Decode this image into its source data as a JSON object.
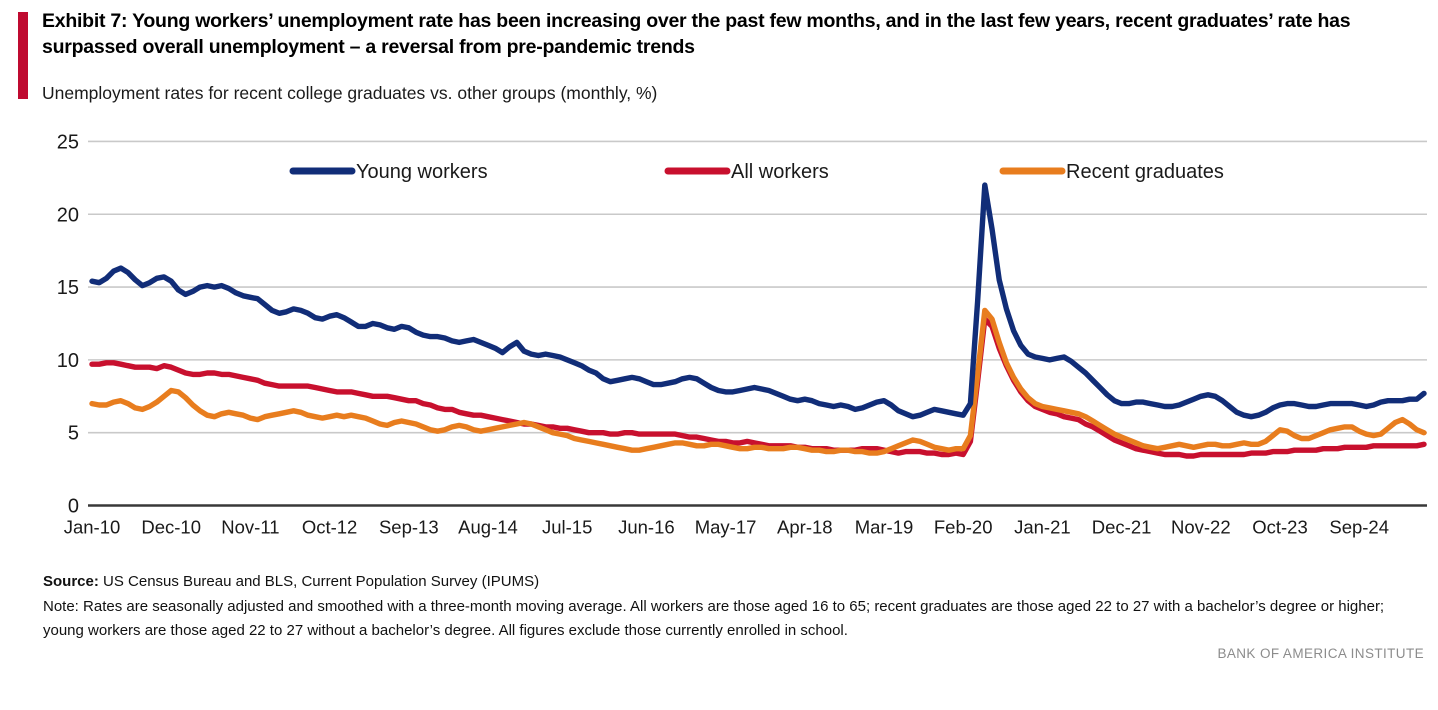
{
  "header": {
    "title": "Exhibit 7: Young workers’ unemployment rate has been increasing over the past few months, and in the last few years, recent graduates’ rate has surpassed overall unemployment – a reversal from pre-pandemic trends",
    "subtitle": "Unemployment rates for recent college graduates vs. other groups (monthly, %)",
    "accent_color": "#bf0a30"
  },
  "chart_data": {
    "type": "line",
    "title": "Unemployment rates for recent college graduates vs. other groups (monthly, %)",
    "x_unit": "month",
    "x_start": "Jan-10",
    "x_end": "Jun-25",
    "x_tick_labels": [
      "Jan-10",
      "Dec-10",
      "Nov-11",
      "Oct-12",
      "Sep-13",
      "Aug-14",
      "Jul-15",
      "Jun-16",
      "May-17",
      "Apr-18",
      "Mar-19",
      "Feb-20",
      "Jan-21",
      "Dec-21",
      "Nov-22",
      "Oct-23",
      "Sep-24"
    ],
    "x_tick_indices": [
      0,
      11,
      22,
      33,
      44,
      55,
      66,
      77,
      88,
      99,
      110,
      121,
      132,
      143,
      154,
      165,
      176
    ],
    "ylim": [
      0,
      25
    ],
    "y_ticks": [
      0,
      5,
      10,
      15,
      20,
      25
    ],
    "grid": "horizontal",
    "legend_position": "top-inside",
    "axis_color": "#383838",
    "grid_color": "#c9c9c9",
    "series": [
      {
        "name": "Young workers",
        "color": "#112d78",
        "values": [
          15.4,
          15.3,
          15.6,
          16.1,
          16.3,
          16.0,
          15.5,
          15.1,
          15.3,
          15.6,
          15.7,
          15.4,
          14.8,
          14.5,
          14.7,
          15.0,
          15.1,
          15.0,
          15.1,
          14.9,
          14.6,
          14.4,
          14.3,
          14.2,
          13.8,
          13.4,
          13.2,
          13.3,
          13.5,
          13.4,
          13.2,
          12.9,
          12.8,
          13.0,
          13.1,
          12.9,
          12.6,
          12.3,
          12.3,
          12.5,
          12.4,
          12.2,
          12.1,
          12.3,
          12.2,
          11.9,
          11.7,
          11.6,
          11.6,
          11.5,
          11.3,
          11.2,
          11.3,
          11.4,
          11.2,
          11.0,
          10.8,
          10.5,
          10.9,
          11.2,
          10.6,
          10.4,
          10.3,
          10.4,
          10.3,
          10.2,
          10.0,
          9.8,
          9.6,
          9.3,
          9.1,
          8.7,
          8.5,
          8.6,
          8.7,
          8.8,
          8.7,
          8.5,
          8.3,
          8.3,
          8.4,
          8.5,
          8.7,
          8.8,
          8.7,
          8.4,
          8.1,
          7.9,
          7.8,
          7.8,
          7.9,
          8.0,
          8.1,
          8.0,
          7.9,
          7.7,
          7.5,
          7.3,
          7.2,
          7.3,
          7.2,
          7.0,
          6.9,
          6.8,
          6.9,
          6.8,
          6.6,
          6.7,
          6.9,
          7.1,
          7.2,
          6.9,
          6.5,
          6.3,
          6.1,
          6.2,
          6.4,
          6.6,
          6.5,
          6.4,
          6.3,
          6.2,
          7.0,
          14.0,
          22.0,
          19.0,
          15.5,
          13.5,
          12.0,
          11.0,
          10.4,
          10.2,
          10.1,
          10.0,
          10.1,
          10.2,
          9.9,
          9.5,
          9.1,
          8.6,
          8.1,
          7.6,
          7.2,
          7.0,
          7.0,
          7.1,
          7.1,
          7.0,
          6.9,
          6.8,
          6.8,
          6.9,
          7.1,
          7.3,
          7.5,
          7.6,
          7.5,
          7.2,
          6.8,
          6.4,
          6.2,
          6.1,
          6.2,
          6.4,
          6.7,
          6.9,
          7.0,
          7.0,
          6.9,
          6.8,
          6.8,
          6.9,
          7.0,
          7.0,
          7.0,
          7.0,
          6.9,
          6.8,
          6.9,
          7.1,
          7.2,
          7.2,
          7.2,
          7.3,
          7.3,
          7.7
        ]
      },
      {
        "name": "All workers",
        "color": "#c8102e",
        "values": [
          9.7,
          9.7,
          9.8,
          9.8,
          9.7,
          9.6,
          9.5,
          9.5,
          9.5,
          9.4,
          9.6,
          9.5,
          9.3,
          9.1,
          9.0,
          9.0,
          9.1,
          9.1,
          9.0,
          9.0,
          8.9,
          8.8,
          8.7,
          8.6,
          8.4,
          8.3,
          8.2,
          8.2,
          8.2,
          8.2,
          8.2,
          8.1,
          8.0,
          7.9,
          7.8,
          7.8,
          7.8,
          7.7,
          7.6,
          7.5,
          7.5,
          7.5,
          7.4,
          7.3,
          7.2,
          7.2,
          7.0,
          6.9,
          6.7,
          6.6,
          6.6,
          6.4,
          6.3,
          6.2,
          6.2,
          6.1,
          6.0,
          5.9,
          5.8,
          5.7,
          5.6,
          5.6,
          5.5,
          5.4,
          5.4,
          5.3,
          5.3,
          5.2,
          5.1,
          5.0,
          5.0,
          5.0,
          4.9,
          4.9,
          5.0,
          5.0,
          4.9,
          4.9,
          4.9,
          4.9,
          4.9,
          4.9,
          4.8,
          4.7,
          4.7,
          4.6,
          4.5,
          4.4,
          4.4,
          4.3,
          4.3,
          4.4,
          4.3,
          4.2,
          4.1,
          4.1,
          4.1,
          4.1,
          4.0,
          4.0,
          3.9,
          3.9,
          3.9,
          3.8,
          3.8,
          3.8,
          3.8,
          3.9,
          3.9,
          3.9,
          3.8,
          3.7,
          3.6,
          3.7,
          3.7,
          3.7,
          3.6,
          3.6,
          3.5,
          3.5,
          3.6,
          3.5,
          4.4,
          8.5,
          12.8,
          12.3,
          10.8,
          9.6,
          8.6,
          7.8,
          7.2,
          6.8,
          6.6,
          6.4,
          6.3,
          6.1,
          6.0,
          5.9,
          5.6,
          5.4,
          5.1,
          4.8,
          4.5,
          4.3,
          4.1,
          3.9,
          3.8,
          3.7,
          3.6,
          3.5,
          3.5,
          3.5,
          3.4,
          3.4,
          3.5,
          3.5,
          3.5,
          3.5,
          3.5,
          3.5,
          3.5,
          3.6,
          3.6,
          3.6,
          3.7,
          3.7,
          3.7,
          3.8,
          3.8,
          3.8,
          3.8,
          3.9,
          3.9,
          3.9,
          4.0,
          4.0,
          4.0,
          4.0,
          4.1,
          4.1,
          4.1,
          4.1,
          4.1,
          4.1,
          4.1,
          4.2
        ]
      },
      {
        "name": "Recent graduates",
        "color": "#e87d1e",
        "values": [
          7.0,
          6.9,
          6.9,
          7.1,
          7.2,
          7.0,
          6.7,
          6.6,
          6.8,
          7.1,
          7.5,
          7.9,
          7.8,
          7.4,
          6.9,
          6.5,
          6.2,
          6.1,
          6.3,
          6.4,
          6.3,
          6.2,
          6.0,
          5.9,
          6.1,
          6.2,
          6.3,
          6.4,
          6.5,
          6.4,
          6.2,
          6.1,
          6.0,
          6.1,
          6.2,
          6.1,
          6.2,
          6.1,
          6.0,
          5.8,
          5.6,
          5.5,
          5.7,
          5.8,
          5.7,
          5.6,
          5.4,
          5.2,
          5.1,
          5.2,
          5.4,
          5.5,
          5.4,
          5.2,
          5.1,
          5.2,
          5.3,
          5.4,
          5.5,
          5.6,
          5.7,
          5.6,
          5.4,
          5.2,
          5.0,
          4.9,
          4.8,
          4.6,
          4.5,
          4.4,
          4.3,
          4.2,
          4.1,
          4.0,
          3.9,
          3.8,
          3.8,
          3.9,
          4.0,
          4.1,
          4.2,
          4.3,
          4.3,
          4.2,
          4.1,
          4.1,
          4.2,
          4.2,
          4.1,
          4.0,
          3.9,
          3.9,
          4.0,
          4.0,
          3.9,
          3.9,
          3.9,
          4.0,
          4.0,
          3.9,
          3.8,
          3.8,
          3.7,
          3.7,
          3.8,
          3.8,
          3.7,
          3.7,
          3.6,
          3.6,
          3.7,
          3.9,
          4.1,
          4.3,
          4.5,
          4.4,
          4.2,
          4.0,
          3.9,
          3.8,
          3.9,
          3.9,
          4.8,
          9.0,
          13.4,
          12.8,
          11.2,
          9.8,
          8.8,
          8.0,
          7.4,
          7.0,
          6.8,
          6.7,
          6.6,
          6.5,
          6.4,
          6.3,
          6.1,
          5.8,
          5.5,
          5.2,
          4.9,
          4.7,
          4.5,
          4.3,
          4.1,
          4.0,
          3.9,
          4.0,
          4.1,
          4.2,
          4.1,
          4.0,
          4.1,
          4.2,
          4.2,
          4.1,
          4.1,
          4.2,
          4.3,
          4.2,
          4.2,
          4.4,
          4.8,
          5.2,
          5.1,
          4.8,
          4.6,
          4.6,
          4.8,
          5.0,
          5.2,
          5.3,
          5.4,
          5.4,
          5.1,
          4.9,
          4.8,
          4.9,
          5.3,
          5.7,
          5.9,
          5.6,
          5.2,
          5.0
        ]
      }
    ]
  },
  "footer": {
    "source_label": "Source:",
    "source_text": " US Census Bureau and BLS, Current Population Survey (IPUMS)",
    "note": "Note: Rates are seasonally adjusted and smoothed with a three-month moving average. All workers are those aged 16 to 65; recent graduates are those aged 22 to 27 with a bachelor’s degree or higher; young workers are those aged 22 to 27 without a bachelor’s degree. All figures exclude those currently enrolled in school.",
    "branding": "BANK OF AMERICA INSTITUTE"
  }
}
